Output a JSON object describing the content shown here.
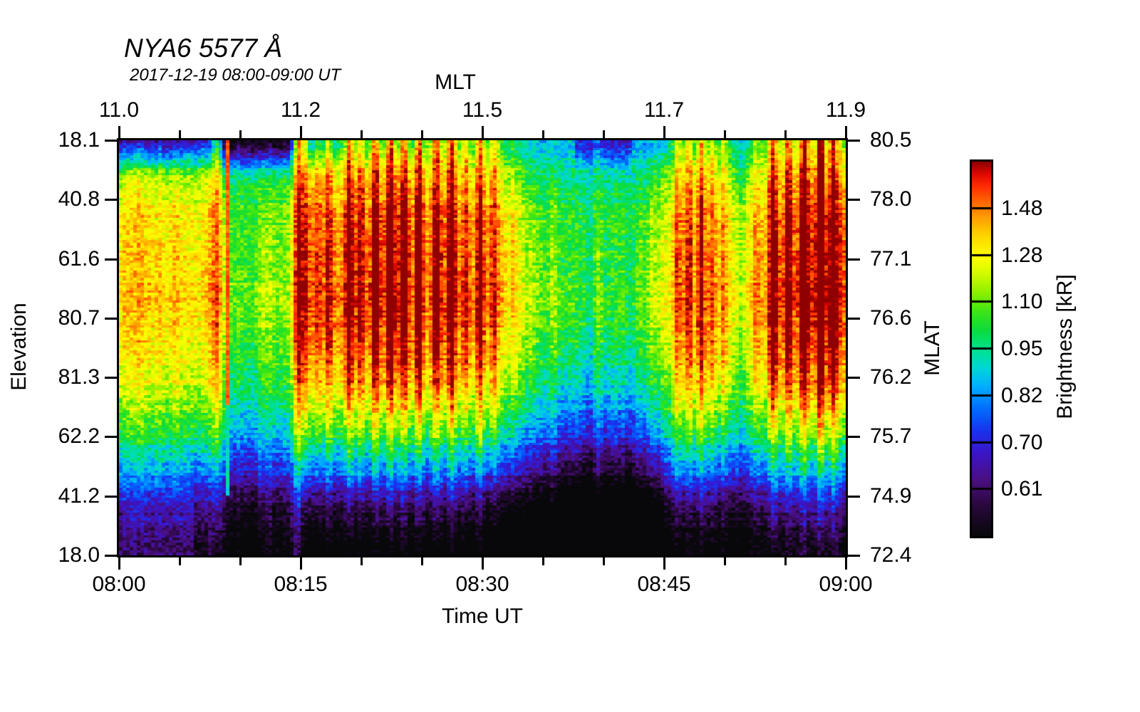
{
  "title": "NYA6 5577 Å",
  "subtitle": "2017-12-19 08:00-09:00 UT",
  "axes": {
    "top": {
      "label": "MLT",
      "ticks": [
        "11.0",
        "11.2",
        "11.5",
        "11.7",
        "11.9"
      ]
    },
    "bottom": {
      "label": "Time UT",
      "ticks": [
        "08:00",
        "08:15",
        "08:30",
        "08:45",
        "09:00"
      ]
    },
    "left": {
      "label": "Elevation",
      "ticks": [
        "18.1",
        "40.8",
        "61.6",
        "80.7",
        "81.3",
        "62.2",
        "41.2",
        "18.0"
      ]
    },
    "right": {
      "label": "MLAT",
      "ticks": [
        "80.5",
        "78.0",
        "77.1",
        "76.6",
        "76.2",
        "75.7",
        "74.9",
        "72.4"
      ]
    }
  },
  "colorbar": {
    "label": "Brightness [kR]",
    "ticks": [
      "1.48",
      "1.28",
      "1.10",
      "0.95",
      "0.82",
      "0.70",
      "0.61"
    ]
  },
  "chart_data": {
    "type": "heatmap",
    "title": "NYA6 5577 Å",
    "subtitle": "2017-12-19 08:00-09:00 UT",
    "x_axis": {
      "label": "Time UT",
      "start": "08:00",
      "end": "09:00",
      "major_tick_minutes": 15,
      "minor_tick_minutes": 5
    },
    "top_axis": {
      "label": "MLT",
      "tick_values": [
        11.0,
        11.2,
        11.5,
        11.7,
        11.9
      ]
    },
    "y_axis_left": {
      "label": "Elevation",
      "tick_values": [
        18.1,
        40.8,
        61.6,
        80.7,
        81.3,
        62.2,
        41.2,
        18.0
      ]
    },
    "y_axis_right": {
      "label": "MLAT",
      "tick_values": [
        80.5,
        78.0,
        77.1,
        76.6,
        76.2,
        75.7,
        74.9,
        72.4
      ]
    },
    "color_scale": {
      "label": "Brightness [kR]",
      "tick_values": [
        1.48,
        1.28,
        1.1,
        0.95,
        0.82,
        0.7,
        0.61
      ],
      "scale": "log",
      "segments": 8
    },
    "description": "Meridian-scanning photometer keogram of 557.7 nm auroral brightness vs elevation and time. Bright red bands (>1.4 kR) fill mid elevations with vertical striations; dark (<0.6 kR) band along bottom; quieter green interval near 08:35-08:42 UT; sharp narrow bright column near 08:09 UT.",
    "model": {
      "seed": 1337,
      "cols": 204,
      "rows": 166,
      "cell_noise": 0.14,
      "row_noise": 0.05,
      "col_jitter": 0.12,
      "v_profile": [
        [
          0,
          0.45
        ],
        [
          0.02,
          0.47
        ],
        [
          0.05,
          0.52
        ],
        [
          0.1,
          0.58
        ],
        [
          0.16,
          0.63
        ],
        [
          0.25,
          0.67
        ],
        [
          0.35,
          0.69
        ],
        [
          0.45,
          0.67
        ],
        [
          0.52,
          0.64
        ],
        [
          0.58,
          0.6
        ],
        [
          0.64,
          0.55
        ],
        [
          0.69,
          0.49
        ],
        [
          0.73,
          0.43
        ],
        [
          0.77,
          0.36
        ],
        [
          0.81,
          0.29
        ],
        [
          0.85,
          0.18
        ],
        [
          0.9,
          0.11
        ],
        [
          0.95,
          0.06
        ],
        [
          1,
          0.03
        ]
      ],
      "w_pos": [
        [
          0,
          1.15
        ],
        [
          0.06,
          1.05
        ],
        [
          0.15,
          1.0
        ],
        [
          0.55,
          1.0
        ],
        [
          0.65,
          0.85
        ],
        [
          0.75,
          0.65
        ],
        [
          0.85,
          0.45
        ],
        [
          1,
          0.3
        ]
      ],
      "w_neg": [
        [
          0,
          0.25
        ],
        [
          0.08,
          0.5
        ],
        [
          0.18,
          0.85
        ],
        [
          0.3,
          1.0
        ],
        [
          1,
          1.0
        ]
      ],
      "envelope": [
        [
          0,
          0.13
        ],
        [
          0.03,
          0.15
        ],
        [
          0.06,
          0.12
        ],
        [
          0.085,
          0.14
        ],
        [
          0.11,
          0.1
        ],
        [
          0.125,
          0.12
        ],
        [
          0.135,
          0.06
        ],
        [
          0.155,
          -0.06
        ],
        [
          0.17,
          -0.09
        ],
        [
          0.185,
          -0.05
        ],
        [
          0.2,
          0.0
        ],
        [
          0.215,
          -0.04
        ],
        [
          0.235,
          0.02
        ],
        [
          0.248,
          0.1
        ],
        [
          0.26,
          0.16
        ],
        [
          0.28,
          0.13
        ],
        [
          0.3,
          0.17
        ],
        [
          0.33,
          0.2
        ],
        [
          0.36,
          0.16
        ],
        [
          0.385,
          0.21
        ],
        [
          0.41,
          0.17
        ],
        [
          0.44,
          0.21
        ],
        [
          0.47,
          0.17
        ],
        [
          0.5,
          0.19
        ],
        [
          0.52,
          0.12
        ],
        [
          0.545,
          0.05
        ],
        [
          0.57,
          -0.03
        ],
        [
          0.6,
          -0.09
        ],
        [
          0.63,
          -0.13
        ],
        [
          0.66,
          -0.15
        ],
        [
          0.69,
          -0.12
        ],
        [
          0.72,
          -0.07
        ],
        [
          0.75,
          0.01
        ],
        [
          0.775,
          0.09
        ],
        [
          0.8,
          0.13
        ],
        [
          0.825,
          0.09
        ],
        [
          0.85,
          0.05
        ],
        [
          0.875,
          0.11
        ],
        [
          0.9,
          0.17
        ],
        [
          0.93,
          0.22
        ],
        [
          0.96,
          0.25
        ],
        [
          1,
          0.22
        ]
      ],
      "spikes": [
        [
          0.133,
          0.16
        ],
        [
          0.245,
          0.26
        ],
        [
          0.255,
          0.2
        ],
        [
          0.272,
          0.14
        ],
        [
          0.288,
          0.19
        ],
        [
          0.316,
          0.24
        ],
        [
          0.332,
          0.16
        ],
        [
          0.352,
          0.22
        ],
        [
          0.372,
          0.27
        ],
        [
          0.392,
          0.18
        ],
        [
          0.412,
          0.25
        ],
        [
          0.436,
          0.21
        ],
        [
          0.457,
          0.27
        ],
        [
          0.477,
          0.17
        ],
        [
          0.497,
          0.23
        ],
        [
          0.517,
          0.14
        ],
        [
          0.543,
          0.1
        ],
        [
          0.6,
          0.08
        ],
        [
          0.662,
          0.1
        ],
        [
          0.77,
          0.2
        ],
        [
          0.786,
          0.16
        ],
        [
          0.802,
          0.22
        ],
        [
          0.818,
          0.18
        ],
        [
          0.834,
          0.14
        ],
        [
          0.858,
          -0.1
        ],
        [
          0.878,
          0.12
        ],
        [
          0.902,
          0.28
        ],
        [
          0.922,
          0.2
        ],
        [
          0.945,
          0.24
        ],
        [
          0.968,
          0.3
        ],
        [
          0.985,
          0.22
        ]
      ],
      "spike_sigma": 0.006,
      "top_dark": [
        [
          0,
          0.085,
          0.42
        ],
        [
          0.085,
          0.14,
          0.34
        ],
        [
          0.14,
          0.235,
          0.44
        ],
        [
          0.235,
          0.3,
          0.3
        ],
        [
          0.3,
          0.42,
          0.16
        ],
        [
          0.42,
          0.55,
          0.06
        ],
        [
          0.55,
          0.63,
          0.04
        ],
        [
          0.63,
          0.705,
          0.2
        ],
        [
          0.705,
          0.78,
          0.06
        ],
        [
          0.78,
          0.9,
          0.03
        ],
        [
          0.9,
          1.01,
          0.05
        ]
      ],
      "top_fade": 0.085,
      "bottom_rise": [
        [
          0,
          0.1,
          -0.04
        ],
        [
          0.1,
          0.25,
          0.04
        ],
        [
          0.25,
          0.5,
          0.2
        ],
        [
          0.5,
          0.6,
          0.26
        ],
        [
          0.6,
          0.75,
          0.3
        ],
        [
          0.75,
          0.85,
          0.16
        ],
        [
          0.85,
          1.01,
          0.12
        ]
      ],
      "bottom_start": 0.45,
      "red_line": {
        "x": 0.147,
        "v_top": 0.9,
        "t_red_end": 0.64,
        "v_tail": 0.47,
        "t_tail_end": 0.86
      },
      "colormap": [
        [
          0.0,
          8,
          8,
          10
        ],
        [
          0.08,
          40,
          8,
          60
        ],
        [
          0.15,
          75,
          15,
          130
        ],
        [
          0.22,
          60,
          20,
          200
        ],
        [
          0.28,
          25,
          50,
          240
        ],
        [
          0.34,
          0,
          110,
          255
        ],
        [
          0.4,
          0,
          175,
          255
        ],
        [
          0.45,
          0,
          215,
          215
        ],
        [
          0.5,
          0,
          225,
          140
        ],
        [
          0.55,
          10,
          220,
          60
        ],
        [
          0.6,
          60,
          230,
          20
        ],
        [
          0.65,
          140,
          240,
          0
        ],
        [
          0.7,
          210,
          250,
          0
        ],
        [
          0.745,
          255,
          255,
          0
        ],
        [
          0.8,
          255,
          215,
          0
        ],
        [
          0.85,
          255,
          160,
          0
        ],
        [
          0.895,
          255,
          100,
          0
        ],
        [
          0.935,
          255,
          45,
          0
        ],
        [
          0.965,
          225,
          10,
          0
        ],
        [
          1.0,
          145,
          0,
          0
        ]
      ]
    }
  }
}
